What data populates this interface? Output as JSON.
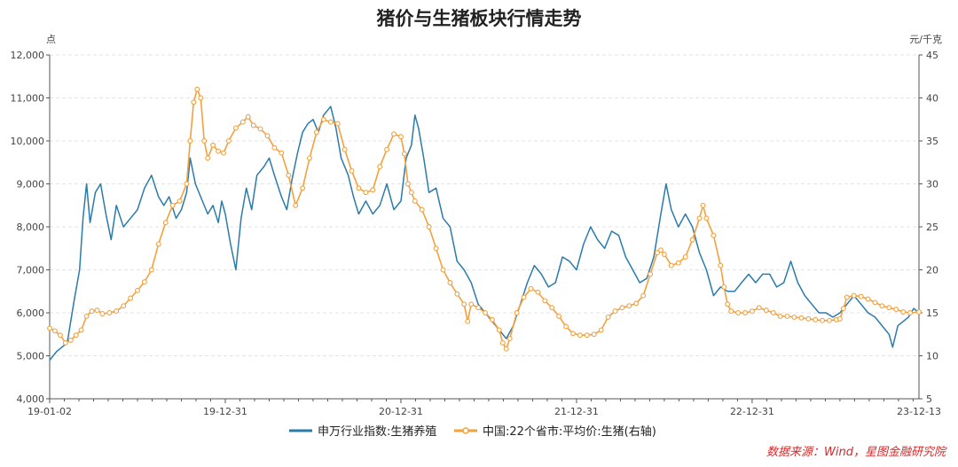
{
  "chart_data": {
    "type": "line",
    "title": "猪价与生猪板块行情走势",
    "y_left_unit": "点",
    "y_right_unit": "元/千克",
    "y_left_range": [
      4000,
      12000
    ],
    "y_right_range": [
      5,
      45
    ],
    "y_left_ticks": [
      "4,000",
      "5,000",
      "6,000",
      "7,000",
      "8,000",
      "9,000",
      "10,000",
      "11,000",
      "12,000"
    ],
    "y_left_tick_values": [
      4000,
      5000,
      6000,
      7000,
      8000,
      9000,
      10000,
      11000,
      12000
    ],
    "y_right_ticks": [
      "5",
      "10",
      "15",
      "20",
      "25",
      "30",
      "35",
      "40",
      "45"
    ],
    "y_right_tick_values": [
      5,
      10,
      15,
      20,
      25,
      30,
      35,
      40,
      45
    ],
    "x_ticks": [
      "19-01-02",
      "19-12-31",
      "20-12-31",
      "21-12-31",
      "22-12-31",
      "23-12-13"
    ],
    "x_tick_values": [
      2019.0,
      2020.0,
      2021.0,
      2022.0,
      2023.0,
      2023.95
    ],
    "x_range": [
      2019.0,
      2023.95
    ],
    "series": [
      {
        "name": "申万行业指数:生猪养殖",
        "axis": "left",
        "color": "#2a7bab",
        "points": [
          [
            2019.0,
            4900
          ],
          [
            2019.04,
            5100
          ],
          [
            2019.1,
            5300
          ],
          [
            2019.14,
            6300
          ],
          [
            2019.17,
            7000
          ],
          [
            2019.19,
            8200
          ],
          [
            2019.21,
            9000
          ],
          [
            2019.23,
            8100
          ],
          [
            2019.26,
            8800
          ],
          [
            2019.29,
            9000
          ],
          [
            2019.32,
            8300
          ],
          [
            2019.35,
            7700
          ],
          [
            2019.38,
            8500
          ],
          [
            2019.42,
            8000
          ],
          [
            2019.46,
            8200
          ],
          [
            2019.5,
            8400
          ],
          [
            2019.54,
            8900
          ],
          [
            2019.58,
            9200
          ],
          [
            2019.62,
            8700
          ],
          [
            2019.65,
            8500
          ],
          [
            2019.68,
            8700
          ],
          [
            2019.72,
            8200
          ],
          [
            2019.75,
            8400
          ],
          [
            2019.78,
            8800
          ],
          [
            2019.8,
            9600
          ],
          [
            2019.83,
            9000
          ],
          [
            2019.87,
            8600
          ],
          [
            2019.9,
            8300
          ],
          [
            2019.93,
            8500
          ],
          [
            2019.96,
            8100
          ],
          [
            2019.98,
            8600
          ],
          [
            2020.0,
            8300
          ],
          [
            2020.03,
            7600
          ],
          [
            2020.06,
            7000
          ],
          [
            2020.09,
            8200
          ],
          [
            2020.12,
            8900
          ],
          [
            2020.15,
            8400
          ],
          [
            2020.18,
            9200
          ],
          [
            2020.22,
            9400
          ],
          [
            2020.25,
            9600
          ],
          [
            2020.28,
            9200
          ],
          [
            2020.32,
            8700
          ],
          [
            2020.35,
            8400
          ],
          [
            2020.38,
            9100
          ],
          [
            2020.41,
            9700
          ],
          [
            2020.44,
            10200
          ],
          [
            2020.47,
            10400
          ],
          [
            2020.5,
            10500
          ],
          [
            2020.53,
            10200
          ],
          [
            2020.56,
            10600
          ],
          [
            2020.6,
            10800
          ],
          [
            2020.63,
            10300
          ],
          [
            2020.66,
            9600
          ],
          [
            2020.7,
            9200
          ],
          [
            2020.73,
            8700
          ],
          [
            2020.76,
            8300
          ],
          [
            2020.8,
            8600
          ],
          [
            2020.84,
            8300
          ],
          [
            2020.88,
            8500
          ],
          [
            2020.92,
            9000
          ],
          [
            2020.96,
            8400
          ],
          [
            2021.0,
            8600
          ],
          [
            2021.03,
            9600
          ],
          [
            2021.06,
            9900
          ],
          [
            2021.08,
            10600
          ],
          [
            2021.1,
            10300
          ],
          [
            2021.13,
            9600
          ],
          [
            2021.16,
            8800
          ],
          [
            2021.2,
            8900
          ],
          [
            2021.24,
            8200
          ],
          [
            2021.28,
            8000
          ],
          [
            2021.32,
            7200
          ],
          [
            2021.36,
            7000
          ],
          [
            2021.4,
            6700
          ],
          [
            2021.44,
            6200
          ],
          [
            2021.48,
            6000
          ],
          [
            2021.52,
            5800
          ],
          [
            2021.56,
            5600
          ],
          [
            2021.6,
            5400
          ],
          [
            2021.64,
            5700
          ],
          [
            2021.68,
            6200
          ],
          [
            2021.72,
            6700
          ],
          [
            2021.76,
            7100
          ],
          [
            2021.8,
            6900
          ],
          [
            2021.84,
            6600
          ],
          [
            2021.88,
            6700
          ],
          [
            2021.92,
            7300
          ],
          [
            2021.96,
            7200
          ],
          [
            2022.0,
            7000
          ],
          [
            2022.04,
            7600
          ],
          [
            2022.08,
            8000
          ],
          [
            2022.12,
            7700
          ],
          [
            2022.16,
            7500
          ],
          [
            2022.2,
            7900
          ],
          [
            2022.24,
            7800
          ],
          [
            2022.28,
            7300
          ],
          [
            2022.32,
            7000
          ],
          [
            2022.36,
            6700
          ],
          [
            2022.4,
            6800
          ],
          [
            2022.44,
            7300
          ],
          [
            2022.48,
            8300
          ],
          [
            2022.51,
            9000
          ],
          [
            2022.54,
            8400
          ],
          [
            2022.58,
            8000
          ],
          [
            2022.62,
            8300
          ],
          [
            2022.66,
            8000
          ],
          [
            2022.7,
            7400
          ],
          [
            2022.74,
            7000
          ],
          [
            2022.78,
            6400
          ],
          [
            2022.82,
            6600
          ],
          [
            2022.86,
            6500
          ],
          [
            2022.9,
            6500
          ],
          [
            2022.94,
            6700
          ],
          [
            2022.98,
            6900
          ],
          [
            2023.02,
            6700
          ],
          [
            2023.06,
            6900
          ],
          [
            2023.1,
            6900
          ],
          [
            2023.14,
            6600
          ],
          [
            2023.18,
            6700
          ],
          [
            2023.22,
            7200
          ],
          [
            2023.26,
            6700
          ],
          [
            2023.3,
            6400
          ],
          [
            2023.34,
            6200
          ],
          [
            2023.38,
            6000
          ],
          [
            2023.42,
            6000
          ],
          [
            2023.46,
            5900
          ],
          [
            2023.5,
            6000
          ],
          [
            2023.54,
            6200
          ],
          [
            2023.58,
            6400
          ],
          [
            2023.62,
            6200
          ],
          [
            2023.66,
            6000
          ],
          [
            2023.7,
            5900
          ],
          [
            2023.74,
            5700
          ],
          [
            2023.78,
            5500
          ],
          [
            2023.8,
            5200
          ],
          [
            2023.83,
            5700
          ],
          [
            2023.86,
            5800
          ],
          [
            2023.89,
            5900
          ],
          [
            2023.92,
            6100
          ],
          [
            2023.95,
            6000
          ]
        ]
      },
      {
        "name": "中国:22个省市:平均价:生猪(右轴)",
        "axis": "right",
        "color": "#f5a03c",
        "points": [
          [
            2019.0,
            13.2
          ],
          [
            2019.03,
            12.9
          ],
          [
            2019.06,
            12.4
          ],
          [
            2019.09,
            11.5
          ],
          [
            2019.12,
            11.8
          ],
          [
            2019.15,
            12.4
          ],
          [
            2019.18,
            13.0
          ],
          [
            2019.21,
            14.6
          ],
          [
            2019.24,
            15.2
          ],
          [
            2019.27,
            15.3
          ],
          [
            2019.3,
            14.9
          ],
          [
            2019.34,
            15.0
          ],
          [
            2019.38,
            15.2
          ],
          [
            2019.42,
            15.8
          ],
          [
            2019.46,
            16.7
          ],
          [
            2019.5,
            17.6
          ],
          [
            2019.54,
            18.6
          ],
          [
            2019.58,
            20.0
          ],
          [
            2019.62,
            23.0
          ],
          [
            2019.66,
            25.5
          ],
          [
            2019.7,
            27.5
          ],
          [
            2019.74,
            28.0
          ],
          [
            2019.78,
            30.0
          ],
          [
            2019.8,
            35.0
          ],
          [
            2019.82,
            39.5
          ],
          [
            2019.84,
            41.0
          ],
          [
            2019.86,
            40.0
          ],
          [
            2019.88,
            35.0
          ],
          [
            2019.9,
            33.0
          ],
          [
            2019.93,
            34.5
          ],
          [
            2019.96,
            33.8
          ],
          [
            2019.99,
            33.6
          ],
          [
            2020.02,
            35.0
          ],
          [
            2020.06,
            36.5
          ],
          [
            2020.1,
            37.2
          ],
          [
            2020.13,
            37.8
          ],
          [
            2020.16,
            36.8
          ],
          [
            2020.2,
            36.4
          ],
          [
            2020.24,
            35.6
          ],
          [
            2020.28,
            34.2
          ],
          [
            2020.32,
            33.6
          ],
          [
            2020.36,
            31.0
          ],
          [
            2020.4,
            27.5
          ],
          [
            2020.44,
            29.5
          ],
          [
            2020.48,
            33.0
          ],
          [
            2020.52,
            36.0
          ],
          [
            2020.56,
            37.5
          ],
          [
            2020.6,
            37.2
          ],
          [
            2020.64,
            37.0
          ],
          [
            2020.68,
            34.0
          ],
          [
            2020.72,
            31.5
          ],
          [
            2020.76,
            29.5
          ],
          [
            2020.8,
            29.0
          ],
          [
            2020.84,
            29.3
          ],
          [
            2020.88,
            32.0
          ],
          [
            2020.92,
            34.0
          ],
          [
            2020.96,
            35.8
          ],
          [
            2021.0,
            35.5
          ],
          [
            2021.02,
            33.5
          ],
          [
            2021.04,
            30.0
          ],
          [
            2021.06,
            29.0
          ],
          [
            2021.08,
            28.0
          ],
          [
            2021.12,
            27.0
          ],
          [
            2021.16,
            25.0
          ],
          [
            2021.2,
            22.5
          ],
          [
            2021.24,
            20.0
          ],
          [
            2021.28,
            18.5
          ],
          [
            2021.32,
            17.2
          ],
          [
            2021.36,
            16.0
          ],
          [
            2021.38,
            14.0
          ],
          [
            2021.4,
            16.0
          ],
          [
            2021.44,
            15.6
          ],
          [
            2021.48,
            15.0
          ],
          [
            2021.52,
            14.2
          ],
          [
            2021.56,
            13.0
          ],
          [
            2021.58,
            11.5
          ],
          [
            2021.6,
            10.8
          ],
          [
            2021.62,
            12.0
          ],
          [
            2021.66,
            15.0
          ],
          [
            2021.7,
            16.8
          ],
          [
            2021.74,
            17.8
          ],
          [
            2021.78,
            17.4
          ],
          [
            2021.82,
            16.4
          ],
          [
            2021.86,
            15.6
          ],
          [
            2021.9,
            14.6
          ],
          [
            2021.94,
            13.4
          ],
          [
            2021.98,
            12.6
          ],
          [
            2022.02,
            12.4
          ],
          [
            2022.06,
            12.4
          ],
          [
            2022.1,
            12.5
          ],
          [
            2022.14,
            13.0
          ],
          [
            2022.18,
            14.5
          ],
          [
            2022.22,
            15.2
          ],
          [
            2022.26,
            15.6
          ],
          [
            2022.3,
            15.8
          ],
          [
            2022.34,
            16.1
          ],
          [
            2022.38,
            17.0
          ],
          [
            2022.42,
            19.5
          ],
          [
            2022.46,
            22.0
          ],
          [
            2022.48,
            22.3
          ],
          [
            2022.5,
            21.8
          ],
          [
            2022.54,
            20.5
          ],
          [
            2022.58,
            20.8
          ],
          [
            2022.62,
            21.5
          ],
          [
            2022.66,
            23.5
          ],
          [
            2022.7,
            26.0
          ],
          [
            2022.72,
            27.5
          ],
          [
            2022.74,
            26.0
          ],
          [
            2022.78,
            24.0
          ],
          [
            2022.82,
            20.5
          ],
          [
            2022.84,
            18.0
          ],
          [
            2022.86,
            16.0
          ],
          [
            2022.88,
            15.2
          ],
          [
            2022.92,
            15.0
          ],
          [
            2022.96,
            15.0
          ],
          [
            2023.0,
            15.2
          ],
          [
            2023.04,
            15.6
          ],
          [
            2023.08,
            15.3
          ],
          [
            2023.12,
            15.0
          ],
          [
            2023.16,
            14.6
          ],
          [
            2023.2,
            14.6
          ],
          [
            2023.24,
            14.5
          ],
          [
            2023.28,
            14.4
          ],
          [
            2023.32,
            14.3
          ],
          [
            2023.36,
            14.2
          ],
          [
            2023.4,
            14.1
          ],
          [
            2023.44,
            14.1
          ],
          [
            2023.48,
            14.2
          ],
          [
            2023.5,
            14.3
          ],
          [
            2023.52,
            15.5
          ],
          [
            2023.54,
            16.8
          ],
          [
            2023.58,
            17.0
          ],
          [
            2023.62,
            16.9
          ],
          [
            2023.66,
            16.6
          ],
          [
            2023.7,
            16.2
          ],
          [
            2023.74,
            15.8
          ],
          [
            2023.78,
            15.6
          ],
          [
            2023.82,
            15.4
          ],
          [
            2023.86,
            15.1
          ],
          [
            2023.9,
            15.0
          ],
          [
            2023.95,
            15.1
          ]
        ]
      }
    ]
  },
  "legend": {
    "items": [
      {
        "label": "申万行业指数:生猪养殖",
        "color": "#2a7bab"
      },
      {
        "label": "中国:22个省市:平均价:生猪(右轴)",
        "color": "#f5a03c"
      }
    ]
  },
  "source_text": "数据来源：Wind，星图金融研究院"
}
